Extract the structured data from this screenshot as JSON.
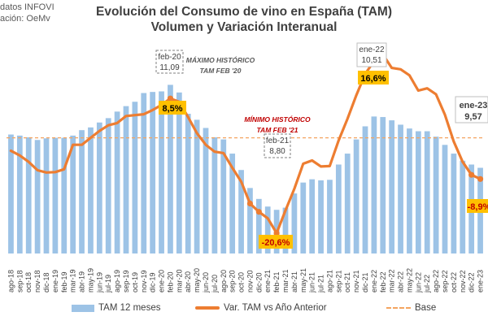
{
  "source": {
    "line1": "datos INFOVI",
    "line2": "ación: OeMv"
  },
  "titles": {
    "line1": "Evolución del Consumo de vino en España (TAM)",
    "line2": "Volumen y Variación Interanual"
  },
  "legend": {
    "bars": "TAM 12 meses",
    "line": "Var. TAM vs Año Anterior",
    "base": "Base"
  },
  "annotations": {
    "max_caption_1": "MÁXIMO HISTÓRICO",
    "max_caption_2": "TAM FEB '20",
    "max_box_month": "feb-20",
    "max_box_value": "11,09",
    "max_pct": "8,5%",
    "min_caption_1": "MÍNIMO HISTÓRICO",
    "min_caption_2": "TAM FEB '21",
    "min_box_month": "feb-21",
    "min_box_value": "8,80",
    "min_pct": "-20,6%",
    "peak_box_month": "ene-22",
    "peak_box_value": "10,51",
    "peak_pct": "16,6%",
    "last_box_month": "ene-23",
    "last_box_value": "9,57",
    "last_pct": "-8,9%"
  },
  "colors": {
    "bars": "#9dc3e6",
    "line": "#ed7d31",
    "base": "#f4a460",
    "callout_fill": "#ffc000",
    "max_caption": "#595959",
    "min_caption": "#c00000",
    "negative_pct": "#c00000"
  },
  "chart_data": {
    "type": "bar+line",
    "categories": [
      "ago-18",
      "sep-18",
      "oct-18",
      "nov-18",
      "dic-18",
      "ene-19",
      "feb-19",
      "mar-19",
      "abr-19",
      "may-19",
      "jun-19",
      "jul-19",
      "ago-19",
      "sep-19",
      "oct-19",
      "nov-19",
      "dic-19",
      "ene-20",
      "feb-20",
      "mar-20",
      "abr-20",
      "may-20",
      "jun-20",
      "jul-20",
      "ago-20",
      "sep-20",
      "oct-20",
      "nov-20",
      "dic-20",
      "ene-21",
      "feb-21",
      "mar-21",
      "abr-21",
      "may-21",
      "jun-21",
      "jul-21",
      "ago-21",
      "sep-21",
      "oct-21",
      "nov-21",
      "dic-21",
      "ene-22",
      "feb-22",
      "mar-22",
      "abr-22",
      "may-22",
      "jun-22",
      "jul-22",
      "ago-22",
      "sep-22",
      "oct-22",
      "nov-22",
      "dic-22",
      "ene-23"
    ],
    "series": [
      {
        "name": "TAM 12 meses",
        "type": "bar",
        "values": [
          10.18,
          10.16,
          10.13,
          10.08,
          10.11,
          10.12,
          10.12,
          10.16,
          10.26,
          10.31,
          10.4,
          10.48,
          10.6,
          10.7,
          10.78,
          10.94,
          10.96,
          10.97,
          11.09,
          10.95,
          10.56,
          10.45,
          10.3,
          10.13,
          10.09,
          9.83,
          9.53,
          9.2,
          9.0,
          8.86,
          8.8,
          8.84,
          9.1,
          9.3,
          9.36,
          9.34,
          9.35,
          9.63,
          9.83,
          10.09,
          10.33,
          10.51,
          10.5,
          10.44,
          10.36,
          10.29,
          10.24,
          10.24,
          10.14,
          9.99,
          9.83,
          9.7,
          9.63,
          9.57
        ]
      },
      {
        "name": "Var. TAM vs Año Anterior",
        "type": "line",
        "values": [
          -2.8,
          -3.8,
          -5.2,
          -7.0,
          -7.5,
          -7.4,
          -6.8,
          -1.5,
          -1.5,
          0.0,
          1.5,
          2.7,
          3.2,
          4.7,
          4.9,
          5.1,
          6.0,
          7.1,
          8.5,
          7.8,
          4.5,
          1.0,
          -1.5,
          -3.0,
          -3.3,
          -6.5,
          -9.5,
          -14.2,
          -16.0,
          -17.4,
          -20.6,
          -15.7,
          -11.0,
          -5.6,
          -4.9,
          -6.2,
          -6.1,
          -0.6,
          4.1,
          9.2,
          13.8,
          16.6,
          18.0,
          15.1,
          14.8,
          13.5,
          10.2,
          10.7,
          9.4,
          5.0,
          -0.8,
          -5.2,
          -8.0,
          -8.9
        ]
      }
    ],
    "base_line": 0,
    "y_bar_range": [
      8.0,
      11.9
    ],
    "y_pct_range": [
      -25.0,
      21.0
    ]
  }
}
